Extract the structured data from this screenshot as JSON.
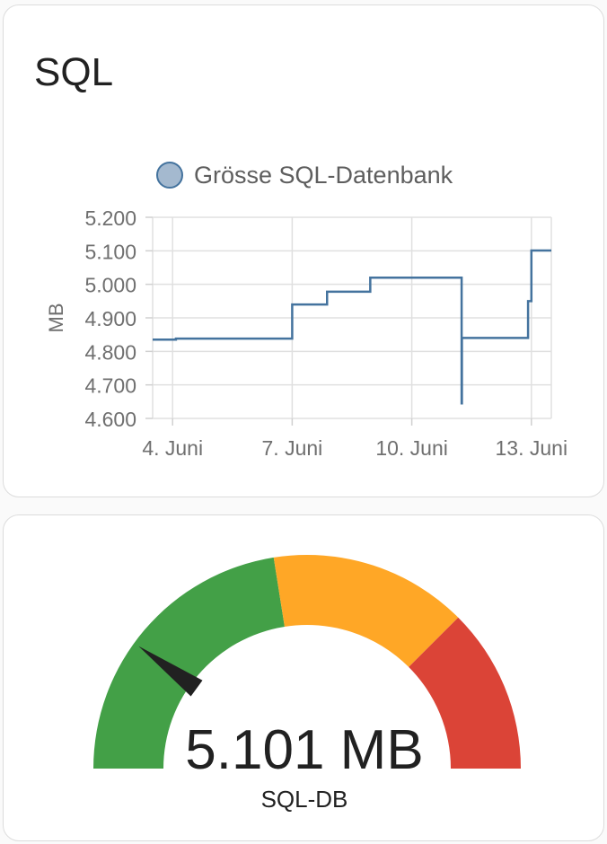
{
  "history_card": {
    "title": "SQL"
  },
  "chart_data": {
    "type": "line",
    "step": true,
    "legend": {
      "position": "top",
      "entries": [
        "Grösse SQL-Datenbank"
      ]
    },
    "ylabel": "MB",
    "xlabel": "",
    "x_ticks": [
      "4. Juni",
      "7. Juni",
      "10. Juni",
      "13. Juni"
    ],
    "x_tick_dates": [
      "2024-06-04",
      "2024-06-07",
      "2024-06-10",
      "2024-06-13"
    ],
    "y_ticks": [
      "5.200",
      "5.100",
      "5.000",
      "4.900",
      "4.800",
      "4.700",
      "4.600"
    ],
    "ylim": [
      4600,
      5200
    ],
    "xlim": [
      "2024-06-03T12:00",
      "2024-06-13T12:00"
    ],
    "grid": true,
    "series": [
      {
        "name": "Grösse SQL-Datenbank",
        "color": "#44739e",
        "fill": "#a4b9cf",
        "points": [
          {
            "x": "2024-06-03T12:00",
            "y": 4835
          },
          {
            "x": "2024-06-04T02:00",
            "y": 4838
          },
          {
            "x": "2024-06-07T00:00",
            "y": 4940
          },
          {
            "x": "2024-06-07T21:00",
            "y": 4978
          },
          {
            "x": "2024-06-08T23:00",
            "y": 5020
          },
          {
            "x": "2024-06-11T06:00",
            "y": 4645
          },
          {
            "x": "2024-06-11T06:10",
            "y": 4840
          },
          {
            "x": "2024-06-12T22:00",
            "y": 4950
          },
          {
            "x": "2024-06-13T00:00",
            "y": 5101
          },
          {
            "x": "2024-06-13T12:00",
            "y": 5101
          }
        ]
      }
    ]
  },
  "gauge": {
    "value_text": "5.101 MB",
    "value": 5101,
    "name": "SQL-DB",
    "colors": {
      "green": "#43a047",
      "yellow": "#ffa726",
      "red": "#db4437",
      "needle": "#212121"
    },
    "segments": [
      {
        "color": "green",
        "fraction": 0.45
      },
      {
        "color": "yellow",
        "fraction": 0.3
      },
      {
        "color": "red",
        "fraction": 0.25
      }
    ],
    "needle_fraction": 0.2
  }
}
